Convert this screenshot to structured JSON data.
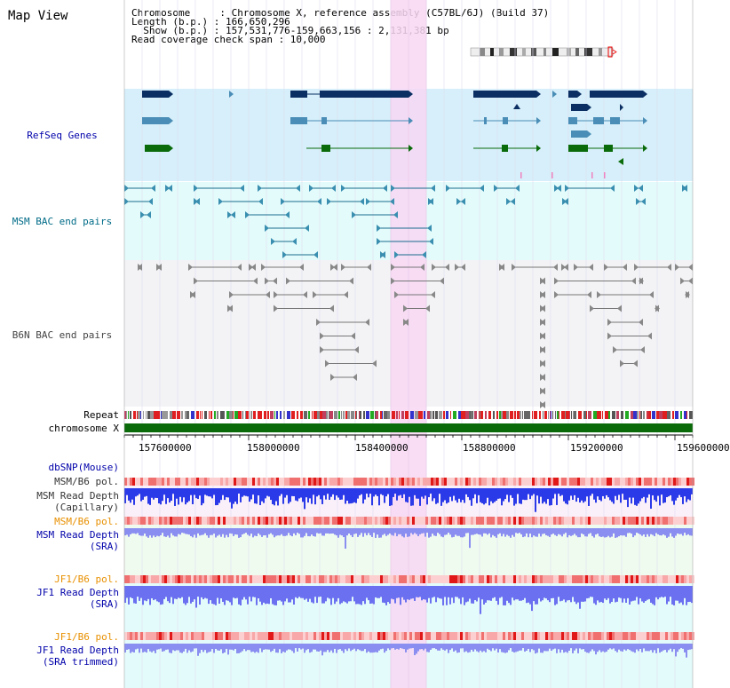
{
  "header": {
    "title": "Map View",
    "info_lines": [
      "Chromosome     : Chromosome X, reference assembly (C57BL/6J) (Build 37)",
      "Length (b.p.) : 166,650,296",
      "  Show (b.p.) : 157,531,776-159,663,156 : 2,131,381 bp",
      "Read coverage check span : 10,000"
    ]
  },
  "tracks": {
    "refseq": "RefSeq Genes",
    "msm_bac": "MSM BAC end pairs",
    "b6n_bac": "B6N BAC end pairs",
    "repeat": "Repeat",
    "chromosome": "chromosome X",
    "dbsnp": "dbSNP(Mouse)",
    "msm_b6_pol_1": "MSM/B6 pol.",
    "msm_depth_cap_1": "MSM Read Depth",
    "msm_depth_cap_2": "(Capillary)",
    "msm_b6_pol_2": "MSM/B6 pol.",
    "msm_depth_sra_1": "MSM Read Depth",
    "msm_depth_sra_2": "(SRA)",
    "jf1_b6_pol_1": "JF1/B6 pol.",
    "jf1_depth_sra_1": "JF1 Read Depth",
    "jf1_depth_sra_2": "(SRA)",
    "jf1_b6_pol_2": "JF1/B6 pol.",
    "jf1_depth_trim_1": "JF1 Read Depth",
    "jf1_depth_trim_2": "(SRA trimmed)"
  },
  "axis": {
    "ticks": [
      "157600000",
      "158000000",
      "158400000",
      "158800000",
      "159200000",
      "159600000"
    ]
  },
  "colors": {
    "highlight": "#f7d7f3",
    "refseq_bg": "#d6effa",
    "msm_bg": "#e4fbfb",
    "b6n_bg": "#f3f3f6",
    "gene_navy": "#0b2f63",
    "gene_steel": "#4a8db6",
    "gene_green": "#0a6b0a",
    "chromosome": "#0a6a0a",
    "snp_red": "#e04040",
    "depth_blue": "#2a3ae8",
    "depth_light": "#8a8ef0"
  }
}
